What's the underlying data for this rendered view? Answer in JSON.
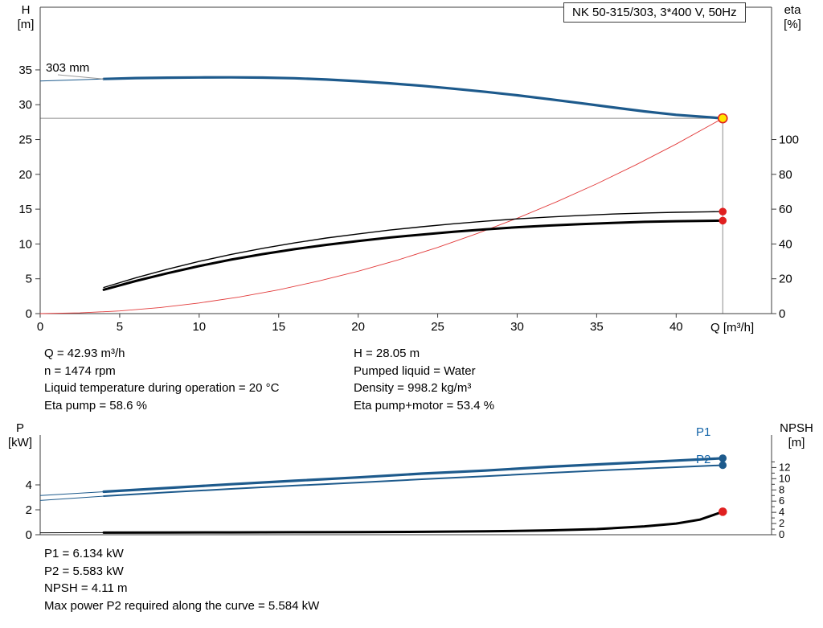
{
  "title_box": "NK 50-315/303, 3*400 V, 50Hz",
  "labels": {
    "impeller": "303 mm",
    "h_axis": "H",
    "h_axis_unit": "[m]",
    "eta_axis": "eta",
    "eta_axis_unit": "[%]",
    "q_axis": "Q [m³/h]",
    "p_axis": "P",
    "p_axis_unit": "[kW]",
    "npsh_axis": "NPSH",
    "npsh_axis_unit": "[m]",
    "p1": "P1",
    "p2": "P2"
  },
  "colors": {
    "curve_blue": "#1d5a8c",
    "curve_red": "#e02020",
    "marker_yellow": "#ffe400",
    "label_blue": "#1565a8",
    "guide_gray": "#8c8c8c"
  },
  "info_top": {
    "left": [
      "Q = 42.93 m³/h",
      "n = 1474 rpm",
      "Liquid temperature during operation = 20 °C",
      "Eta pump = 58.6 %"
    ],
    "right": [
      "H = 28.05 m",
      "Pumped liquid = Water",
      "Density = 998.2 kg/m³",
      "Eta pump+motor = 53.4 %"
    ]
  },
  "info_bottom": [
    "P1 = 6.134 kW",
    "P2 = 5.583 kW",
    "NPSH = 4.11 m",
    "Max power P2 required along the curve = 5.584 kW"
  ],
  "chart_data": [
    {
      "type": "line",
      "name": "qh-eta-chart",
      "title": "NK 50-315/303, 3*400 V, 50Hz",
      "x_axis": {
        "label": "Q [m³/h]",
        "range": [
          0,
          46
        ],
        "ticks": [
          0,
          5,
          10,
          15,
          20,
          25,
          30,
          35,
          40
        ]
      },
      "y_axis_left": {
        "label": "H [m]",
        "range": [
          0,
          44
        ],
        "ticks": [
          0,
          5,
          10,
          15,
          20,
          25,
          30,
          35
        ]
      },
      "y_axis_right": {
        "label": "eta [%]",
        "range": [
          0,
          176
        ],
        "ticks": [
          0,
          20,
          40,
          60,
          80,
          100
        ]
      },
      "duty_point": {
        "q": 42.93,
        "h": 28.05,
        "eta_pump": 58.6,
        "eta_pump_motor": 53.4
      },
      "series": [
        {
          "name": "pump-curve",
          "label": "303 mm",
          "axis": "left",
          "color": "#1d5a8c",
          "width": 3.2,
          "lead_until": 4,
          "q": [
            0,
            2,
            4,
            6,
            8,
            10,
            12,
            14,
            16,
            18,
            20,
            22,
            24,
            26,
            28,
            30,
            32,
            34,
            36,
            38,
            40,
            42.93
          ],
          "v": [
            33.4,
            33.55,
            33.7,
            33.82,
            33.88,
            33.92,
            33.93,
            33.9,
            33.8,
            33.62,
            33.38,
            33.08,
            32.72,
            32.3,
            31.85,
            31.35,
            30.8,
            30.22,
            29.62,
            29.05,
            28.55,
            28.05
          ]
        },
        {
          "name": "system-curve",
          "axis": "left",
          "color": "#e23b3b",
          "width": 0.9,
          "q": [
            0,
            2.5,
            5,
            7.5,
            10,
            12.5,
            15,
            17.5,
            20,
            22.5,
            25,
            27.5,
            30,
            32.5,
            35,
            37.5,
            40,
            42.93
          ],
          "v": [
            0,
            0.1,
            0.38,
            0.86,
            1.52,
            2.38,
            3.42,
            4.66,
            6.09,
            7.7,
            9.51,
            11.51,
            13.7,
            16.07,
            18.64,
            21.4,
            24.35,
            28.05
          ]
        },
        {
          "name": "eta-pump-curve",
          "axis": "right",
          "color": "#000000",
          "width": 1.4,
          "q": [
            4,
            6,
            8,
            10,
            12,
            14,
            16,
            18,
            20,
            22,
            24,
            26,
            28,
            30,
            32,
            34,
            36,
            38,
            40,
            42,
            42.93
          ],
          "v": [
            15,
            20.5,
            25.5,
            30,
            34,
            37.5,
            40.6,
            43.4,
            45.8,
            48,
            49.9,
            51.6,
            53.1,
            54.4,
            55.5,
            56.4,
            57.2,
            57.8,
            58.2,
            58.5,
            58.6
          ]
        },
        {
          "name": "eta-pump-motor-curve",
          "axis": "right",
          "color": "#000000",
          "width": 3,
          "q": [
            4,
            6,
            8,
            10,
            12,
            14,
            16,
            18,
            20,
            22,
            24,
            26,
            28,
            30,
            32,
            34,
            36,
            38,
            40,
            42,
            42.93
          ],
          "v": [
            13.7,
            18.7,
            23.2,
            27.3,
            31,
            34.2,
            37,
            39.5,
            41.7,
            43.7,
            45.4,
            47,
            48.4,
            49.6,
            50.6,
            51.4,
            52.1,
            52.7,
            53.1,
            53.3,
            53.4
          ]
        }
      ],
      "markers": [
        {
          "name": "duty-point",
          "q": 42.93,
          "v": 28.05,
          "axis": "left",
          "fill": "#ffe400",
          "stroke": "#e02020",
          "r": 5.5
        },
        {
          "name": "eta-pump-end",
          "q": 42.93,
          "v": 58.6,
          "axis": "right",
          "fill": "#e02020",
          "stroke": "#e02020",
          "r": 4
        },
        {
          "name": "eta-pump-motor-end",
          "q": 42.93,
          "v": 53.4,
          "axis": "right",
          "fill": "#e02020",
          "stroke": "#e02020",
          "r": 4
        }
      ],
      "guides": [
        {
          "type": "h",
          "value": 28.05,
          "to_q": 42.93
        },
        {
          "type": "v",
          "q": 42.93,
          "from": 28.05
        }
      ]
    },
    {
      "type": "line",
      "name": "power-npsh-chart",
      "x_axis": {
        "label": "",
        "range": [
          0,
          46
        ],
        "ticks": []
      },
      "y_axis_left": {
        "label": "P [kW]",
        "range": [
          0,
          8
        ],
        "ticks": [
          0,
          2,
          4
        ]
      },
      "y_axis_right": {
        "label": "NPSH [m]",
        "range": [
          0,
          17.8
        ],
        "ticks": [
          0,
          2,
          4,
          6,
          8,
          10,
          12
        ],
        "minor_ticks": [
          1,
          3,
          5,
          7,
          9,
          11,
          13
        ]
      },
      "series": [
        {
          "name": "p1-curve",
          "label": "P1",
          "axis": "left",
          "color": "#1d5a8c",
          "width": 3.2,
          "lead_until": 4,
          "q": [
            0,
            4,
            8,
            12,
            16,
            20,
            24,
            28,
            32,
            36,
            40,
            42.93
          ],
          "v": [
            3.15,
            3.45,
            3.75,
            4.05,
            4.33,
            4.6,
            4.9,
            5.15,
            5.45,
            5.7,
            5.95,
            6.134
          ]
        },
        {
          "name": "p2-curve",
          "label": "P2",
          "axis": "left",
          "color": "#1d5a8c",
          "width": 2,
          "lead_until": 4,
          "q": [
            0,
            4,
            8,
            12,
            16,
            20,
            24,
            28,
            32,
            36,
            40,
            42.93
          ],
          "v": [
            2.75,
            3.1,
            3.4,
            3.68,
            3.94,
            4.19,
            4.45,
            4.69,
            4.96,
            5.2,
            5.42,
            5.583
          ]
        },
        {
          "name": "npsh-curve",
          "axis": "right",
          "color": "#000000",
          "width": 3,
          "lead_until": 4,
          "q": [
            0,
            4,
            8,
            12,
            16,
            20,
            24,
            28,
            32,
            35,
            38,
            40,
            41.5,
            42.93
          ],
          "v": [
            0.35,
            0.38,
            0.4,
            0.42,
            0.44,
            0.47,
            0.52,
            0.6,
            0.78,
            1.0,
            1.5,
            2.0,
            2.7,
            4.11
          ]
        }
      ],
      "markers": [
        {
          "name": "p1-end",
          "q": 42.93,
          "v": 6.134,
          "axis": "left",
          "fill": "#1d5a8c",
          "stroke": "#1d5a8c",
          "r": 4
        },
        {
          "name": "p2-end",
          "q": 42.93,
          "v": 5.583,
          "axis": "left",
          "fill": "#1d5a8c",
          "stroke": "#1d5a8c",
          "r": 4
        },
        {
          "name": "npsh-end",
          "q": 42.93,
          "v": 4.11,
          "axis": "right",
          "fill": "#e02020",
          "stroke": "#e02020",
          "r": 4.5
        }
      ],
      "guides": []
    }
  ]
}
